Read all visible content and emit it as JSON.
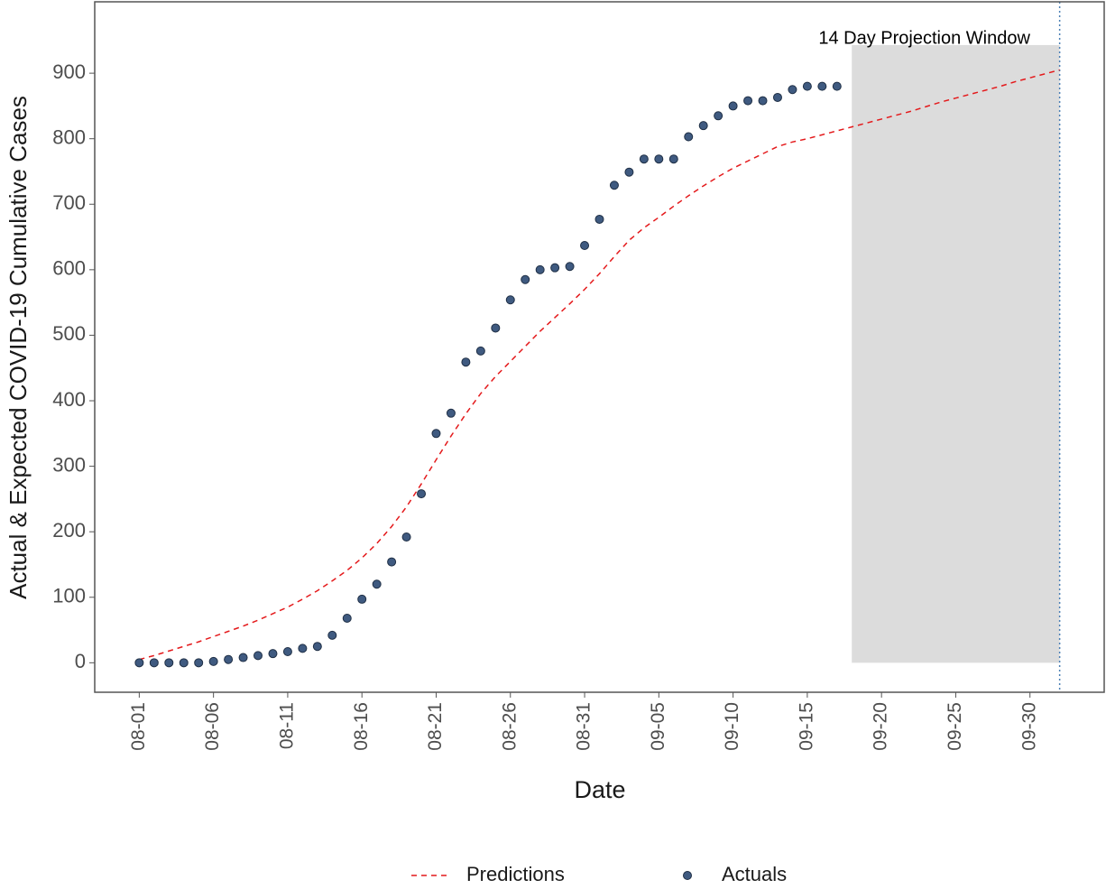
{
  "chart_data": {
    "type": "line",
    "x_label": "Date",
    "y_label": "Actual & Expected COVID-19 Cumulative Cases",
    "annotation": "14 Day Projection Window",
    "window": {
      "start": "09-18",
      "end": "10-02",
      "ymax": 943,
      "color": "#dcdcdc",
      "line_color": "#4a7fb5"
    },
    "xlim": [
      "07-29",
      "10-05"
    ],
    "ylim": [
      -45,
      1009
    ],
    "xticks": [
      "08-01",
      "08-06",
      "08-11",
      "08-16",
      "08-21",
      "08-26",
      "08-31",
      "09-05",
      "09-10",
      "09-15",
      "09-20",
      "09-25",
      "09-30"
    ],
    "yticks": [
      0,
      100,
      200,
      300,
      400,
      500,
      600,
      700,
      800,
      900
    ],
    "legend": "bottom",
    "series": [
      {
        "name": "Predictions",
        "mode": "dashed-line",
        "color": "#e41a1c",
        "x": [
          "08-01",
          "08-02",
          "08-03",
          "08-04",
          "08-05",
          "08-06",
          "08-07",
          "08-08",
          "08-09",
          "08-10",
          "08-11",
          "08-12",
          "08-13",
          "08-14",
          "08-15",
          "08-16",
          "08-17",
          "08-18",
          "08-19",
          "08-20",
          "08-21",
          "08-22",
          "08-23",
          "08-24",
          "08-25",
          "08-26",
          "08-27",
          "08-28",
          "08-29",
          "08-30",
          "08-31",
          "09-01",
          "09-02",
          "09-03",
          "09-04",
          "09-05",
          "09-06",
          "09-07",
          "09-08",
          "09-09",
          "09-10",
          "09-11",
          "09-12",
          "09-13",
          "09-14",
          "09-15",
          "09-16",
          "09-17",
          "09-18",
          "09-19",
          "09-20",
          "09-21",
          "09-22",
          "09-23",
          "09-24",
          "09-25",
          "09-26",
          "09-27",
          "09-28",
          "09-29",
          "09-30",
          "10-01",
          "10-02"
        ],
        "values": [
          5,
          11,
          18,
          25,
          32,
          40,
          48,
          56,
          65,
          75,
          85,
          97,
          110,
          125,
          141,
          160,
          182,
          208,
          238,
          273,
          310,
          346,
          380,
          411,
          437,
          460,
          483,
          506,
          527,
          548,
          570,
          594,
          620,
          645,
          664,
          680,
          697,
          713,
          728,
          742,
          755,
          766,
          777,
          788,
          795,
          800,
          806,
          812,
          818,
          824,
          830,
          836,
          842,
          849,
          856,
          862,
          868,
          874,
          880,
          887,
          893,
          899,
          905
        ]
      },
      {
        "name": "Actuals",
        "mode": "points",
        "color": "#3f5a80",
        "x": [
          "08-01",
          "08-02",
          "08-03",
          "08-04",
          "08-05",
          "08-06",
          "08-07",
          "08-08",
          "08-09",
          "08-10",
          "08-11",
          "08-12",
          "08-13",
          "08-14",
          "08-15",
          "08-16",
          "08-17",
          "08-18",
          "08-19",
          "08-20",
          "08-21",
          "08-22",
          "08-23",
          "08-24",
          "08-25",
          "08-26",
          "08-27",
          "08-28",
          "08-29",
          "08-30",
          "08-31",
          "09-01",
          "09-02",
          "09-03",
          "09-04",
          "09-05",
          "09-06",
          "09-07",
          "09-08",
          "09-09",
          "09-10",
          "09-11",
          "09-12",
          "09-13",
          "09-14",
          "09-15",
          "09-16",
          "09-17"
        ],
        "values": [
          0,
          0,
          0,
          0,
          0,
          2,
          5,
          8,
          11,
          14,
          17,
          22,
          25,
          42,
          68,
          97,
          120,
          154,
          192,
          258,
          350,
          381,
          459,
          476,
          511,
          554,
          585,
          600,
          603,
          605,
          637,
          677,
          729,
          749,
          769,
          769,
          769,
          803,
          820,
          835,
          850,
          858,
          858,
          863,
          875,
          880,
          880,
          880
        ]
      }
    ]
  }
}
